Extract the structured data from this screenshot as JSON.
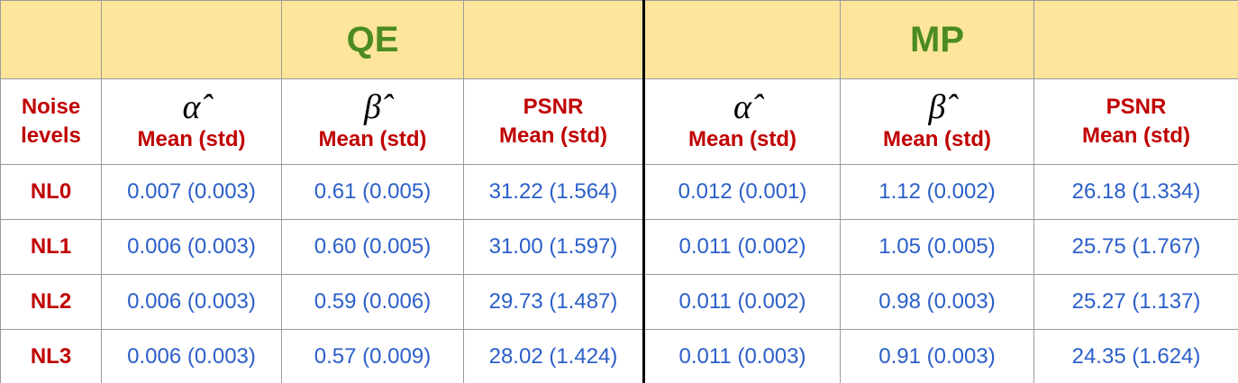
{
  "header": {
    "groups": [
      {
        "label": "QE"
      },
      {
        "label": "MP"
      }
    ]
  },
  "subheader": {
    "row_label": "Noise levels",
    "columns": [
      {
        "symbol": "α̂",
        "stat": "Mean (std)"
      },
      {
        "symbol": "β̂",
        "stat": "Mean (std)"
      },
      {
        "symbol": "PSNR",
        "stat": "Mean (std)"
      },
      {
        "symbol": "α̂",
        "stat": "Mean (std)"
      },
      {
        "symbol": "β̂",
        "stat": "Mean (std)"
      },
      {
        "symbol": "PSNR",
        "stat": "Mean (std)"
      }
    ]
  },
  "table": {
    "rows": [
      {
        "label": "NL0",
        "cells": [
          "0.007 (0.003)",
          "0.61 (0.005)",
          "31.22 (1.564)",
          "0.012 (0.001)",
          "1.12 (0.002)",
          "26.18 (1.334)"
        ]
      },
      {
        "label": "NL1",
        "cells": [
          "0.006 (0.003)",
          "0.60 (0.005)",
          "31.00 (1.597)",
          "0.011 (0.002)",
          "1.05 (0.005)",
          "25.75 (1.767)"
        ]
      },
      {
        "label": "NL2",
        "cells": [
          "0.006 (0.003)",
          "0.59 (0.006)",
          "29.73 (1.487)",
          "0.011 (0.002)",
          "0.98 (0.003)",
          "25.27 (1.137)"
        ]
      },
      {
        "label": "NL3",
        "cells": [
          "0.006 (0.003)",
          "0.57 (0.009)",
          "28.02 (1.424)",
          "0.011 (0.003)",
          "0.91 (0.003)",
          "24.35 (1.624)"
        ]
      }
    ]
  }
}
